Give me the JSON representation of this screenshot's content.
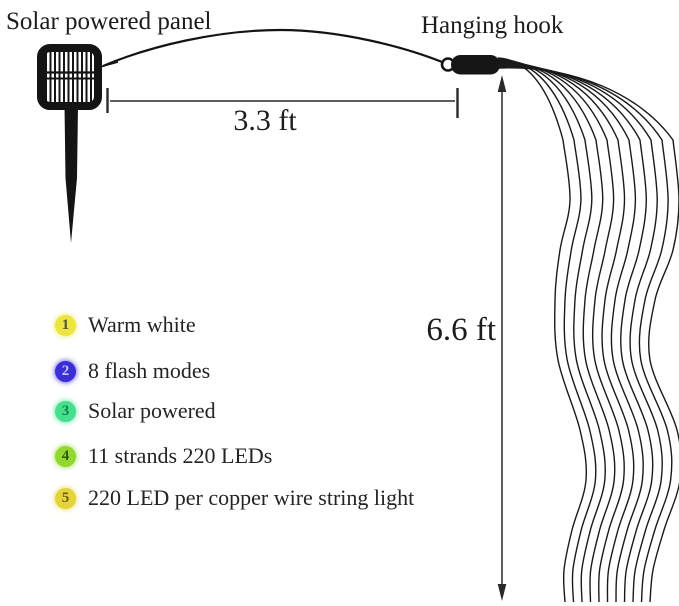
{
  "title_labels": {
    "solar_panel": "Solar powered panel",
    "hanging_hook": "Hanging hook"
  },
  "measurements": {
    "horizontal_span": "3.3 ft",
    "vertical_drop": "6.6 ft"
  },
  "features": [
    {
      "num": "1",
      "label": "Warm white",
      "bullet_color": "#ece541",
      "num_color": "#55543a"
    },
    {
      "num": "2",
      "label": "8 flash modes",
      "bullet_color": "#3a2fd4",
      "num_color": "#c9c4ff"
    },
    {
      "num": "3",
      "label": "Solar powered",
      "bullet_color": "#45df8d",
      "num_color": "#14824d"
    },
    {
      "num": "4",
      "label": "11 strands 220 LEDs",
      "bullet_color": "#93d733",
      "num_color": "#2f5d04"
    },
    {
      "num": "5",
      "label": "220 LED per copper wire string light",
      "bullet_color": "#e5d33b",
      "num_color": "#6f6005"
    }
  ],
  "diagram": {
    "strand_count": 11,
    "line_color": "#1a1a1a"
  }
}
